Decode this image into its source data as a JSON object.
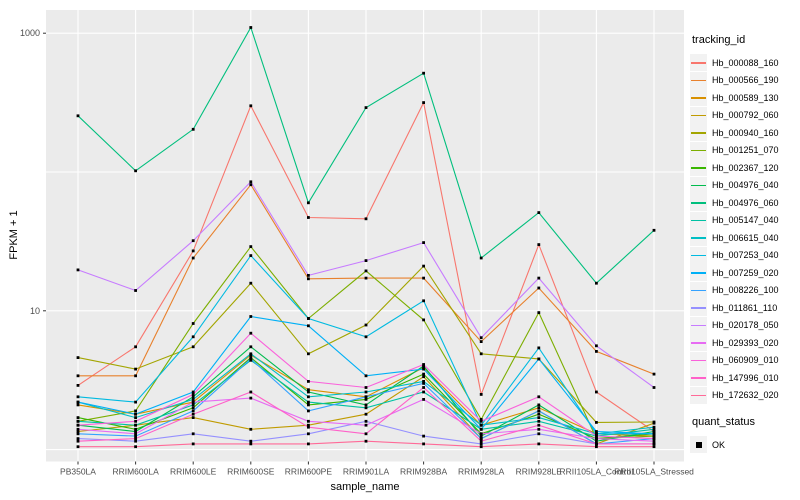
{
  "chart_data": {
    "type": "line",
    "title": "",
    "xlabel": "sample_name",
    "ylabel": "FPKM + 1",
    "y_scale": "log10",
    "ylim": [
      0.83,
      1500
    ],
    "y_major_gridlines": [
      1,
      10,
      100,
      1000
    ],
    "y_tick_labels": [
      {
        "label": "1000",
        "value": 1000
      },
      {
        "label": "10",
        "value": 10
      }
    ],
    "grid": true,
    "panel_background": "#EBEBEB",
    "gridline_color": "#FFFFFF",
    "axis_text_color": "#4D4D4D",
    "point_color": "#000000",
    "legend_position": "right",
    "categories": [
      "PB350LA",
      "RRIM600LA",
      "RRIM600LE",
      "RRIM600SE",
      "RRIM600PE",
      "RRIM901LA",
      "RRIM928BA",
      "RRIM928LA",
      "RRIM928LE",
      "RRII105LA_Control",
      "RRII105LA_Stressed"
    ],
    "series": [
      {
        "name": "Hb_000088_160",
        "color": "#F8766D",
        "values": [
          2.9,
          5.5,
          27,
          300,
          47,
          46,
          316,
          2.5,
          30,
          2.6,
          1.35
        ]
      },
      {
        "name": "Hb_000566_190",
        "color": "#E8812D",
        "values": [
          3.4,
          3.4,
          24,
          81,
          17,
          17.2,
          17.2,
          6.0,
          14.6,
          5.1,
          3.5
        ]
      },
      {
        "name": "Hb_000589_130",
        "color": "#D89000",
        "values": [
          2.1,
          1.8,
          2.2,
          4.8,
          2.7,
          2.4,
          3.9,
          1.5,
          2.0,
          1.3,
          1.25
        ]
      },
      {
        "name": "Hb_000792_060",
        "color": "#C09B00",
        "values": [
          1.35,
          1.5,
          1.7,
          1.4,
          1.5,
          1.8,
          3.35,
          1.2,
          1.9,
          1.1,
          1.55
        ]
      },
      {
        "name": "Hb_000940_160",
        "color": "#A3A500",
        "values": [
          4.6,
          3.8,
          5.5,
          15.8,
          4.9,
          7.9,
          21,
          4.9,
          4.5,
          1.57,
          1.58
        ]
      },
      {
        "name": "Hb_001251_070",
        "color": "#7CAE00",
        "values": [
          1.6,
          1.9,
          8.1,
          29,
          8.8,
          19.4,
          8.6,
          1.65,
          9.7,
          1.2,
          1.25
        ]
      },
      {
        "name": "Hb_002367_120",
        "color": "#39B600",
        "values": [
          1.7,
          1.4,
          2.0,
          4.6,
          2.1,
          2.3,
          3.5,
          1.3,
          1.8,
          1.2,
          1.3
        ]
      },
      {
        "name": "Hb_004976_040",
        "color": "#00BB4E",
        "values": [
          1.5,
          1.35,
          2.4,
          5.5,
          2.6,
          2.1,
          4.0,
          1.25,
          2.1,
          1.15,
          1.35
        ]
      },
      {
        "name": "Hb_004976_060",
        "color": "#00BF7D",
        "values": [
          254,
          102,
          203,
          1100,
          60,
          291,
          515,
          24,
          51,
          15.8,
          38
        ]
      },
      {
        "name": "Hb_005147_040",
        "color": "#00C1A3",
        "values": [
          1.6,
          1.5,
          2.1,
          4.4,
          2.2,
          2.0,
          2.6,
          1.4,
          1.6,
          1.25,
          1.4
        ]
      },
      {
        "name": "Hb_006615_040",
        "color": "#00BFC4",
        "values": [
          2.2,
          1.7,
          2.3,
          4.9,
          2.4,
          2.6,
          3.1,
          1.5,
          1.7,
          1.3,
          1.45
        ]
      },
      {
        "name": "Hb_007253_040",
        "color": "#00BAE0",
        "values": [
          2.4,
          2.2,
          6.5,
          25,
          8.8,
          6.5,
          11.8,
          1.5,
          5.4,
          1.3,
          1.3
        ]
      },
      {
        "name": "Hb_007259_020",
        "color": "#00B0F6",
        "values": [
          2.2,
          1.8,
          2.6,
          9.1,
          7.8,
          3.4,
          3.8,
          1.4,
          4.5,
          1.35,
          1.3
        ]
      },
      {
        "name": "Hb_008226_100",
        "color": "#35A2FF",
        "values": [
          1.3,
          1.25,
          1.9,
          4.5,
          1.9,
          2.4,
          3.0,
          1.2,
          1.9,
          1.1,
          1.2
        ]
      },
      {
        "name": "Hb_011861_110",
        "color": "#9590FF",
        "values": [
          1.2,
          1.15,
          1.3,
          1.15,
          1.3,
          1.6,
          1.25,
          1.1,
          1.3,
          1.1,
          1.1
        ]
      },
      {
        "name": "Hb_020178_050",
        "color": "#C77CFF",
        "values": [
          19.7,
          14,
          32,
          85,
          18,
          23,
          31,
          6.4,
          17.2,
          5.6,
          2.8
        ]
      },
      {
        "name": "Hb_029393_020",
        "color": "#E76BF3",
        "values": [
          1.4,
          1.3,
          2.2,
          2.35,
          1.6,
          1.5,
          2.3,
          1.3,
          1.4,
          1.2,
          1.15
        ]
      },
      {
        "name": "Hb_060909_010",
        "color": "#FA62DB",
        "values": [
          1.5,
          1.6,
          2.5,
          6.9,
          3.1,
          2.8,
          4.1,
          1.6,
          2.4,
          1.25,
          1.2
        ]
      },
      {
        "name": "Hb_147996_010",
        "color": "#FF61C9",
        "values": [
          1.15,
          1.2,
          1.8,
          2.6,
          1.45,
          1.3,
          2.8,
          1.15,
          1.5,
          1.1,
          1.1
        ]
      },
      {
        "name": "Hb_172632_020",
        "color": "#FF6A98",
        "values": [
          1.05,
          1.05,
          1.1,
          1.1,
          1.1,
          1.15,
          1.1,
          1.05,
          1.1,
          1.05,
          1.05
        ]
      }
    ],
    "legend": {
      "tracking_title": "tracking_id",
      "quant_title": "quant_status",
      "quant_entries": [
        {
          "label": "OK",
          "marker": "black-square"
        }
      ]
    }
  }
}
